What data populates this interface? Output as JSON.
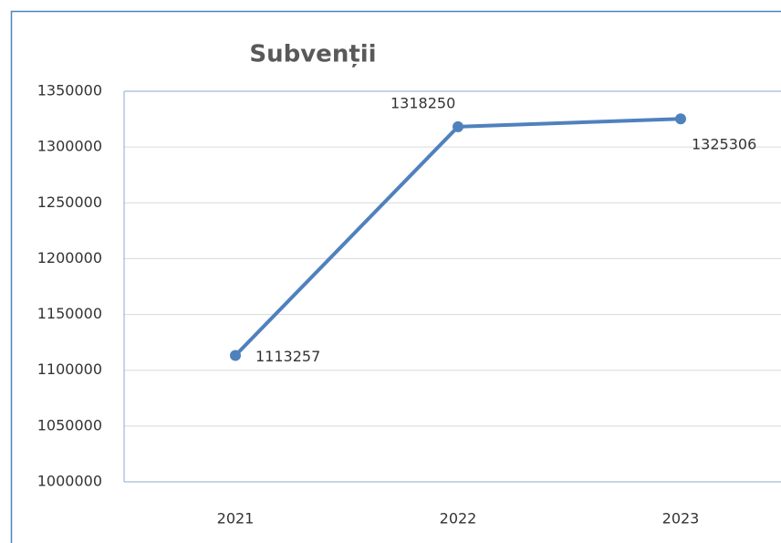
{
  "chart_data": {
    "type": "line",
    "title": "Subvenții",
    "categories": [
      "2021",
      "2022",
      "2023"
    ],
    "series": [
      {
        "name": "Subvenții",
        "color": "#4f81bd",
        "values": [
          1113257,
          1318250,
          1325306
        ]
      }
    ],
    "ylim": [
      1000000,
      1350000
    ],
    "yticks": [
      1000000,
      1050000,
      1100000,
      1150000,
      1200000,
      1250000,
      1300000,
      1350000
    ],
    "grid": true
  }
}
